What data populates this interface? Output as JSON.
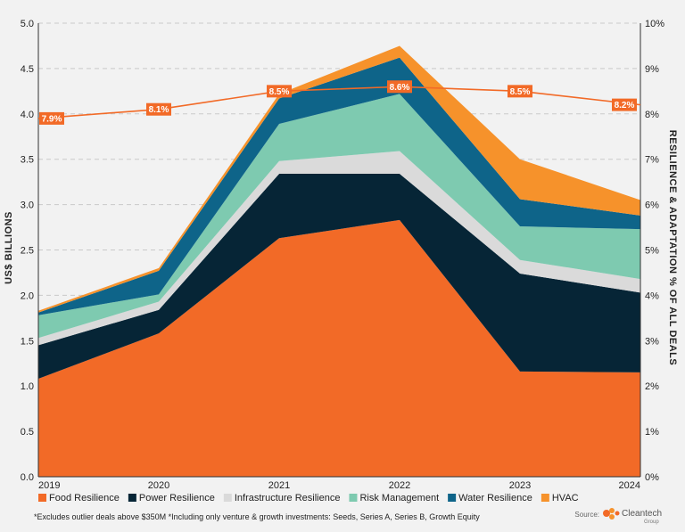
{
  "chart_data": {
    "type": "area",
    "stacked": true,
    "ylabel_left": "US$ BILLIONS",
    "ylabel_right": "RESILIENCE & ADAPTATION % OF ALL DEALS",
    "x": [
      "2019",
      "2020",
      "2021",
      "2022",
      "2023",
      "2024"
    ],
    "ylim_left": [
      0,
      5
    ],
    "yticks_left": [
      "0.0",
      "0.5",
      "1.0",
      "1.5",
      "2.0",
      "2.5",
      "3.0",
      "3.5",
      "4.0",
      "4.5",
      "5.0"
    ],
    "ylim_right": [
      0,
      10
    ],
    "yticks_right": [
      "0%",
      "1%",
      "2%",
      "3%",
      "4%",
      "5%",
      "6%",
      "7%",
      "8%",
      "9%",
      "10%"
    ],
    "grid": "horizontal dashed",
    "legend_placement": "bottom",
    "series": [
      {
        "name": "Food Resilience",
        "color": "#f26a27",
        "values": [
          1.08,
          1.58,
          2.63,
          2.83,
          1.16,
          1.15
        ]
      },
      {
        "name": "Power Resilience",
        "color": "#062536",
        "values": [
          0.37,
          0.26,
          0.71,
          0.51,
          1.08,
          0.88
        ]
      },
      {
        "name": "Infrastructure Resilience",
        "color": "#dadada",
        "values": [
          0.08,
          0.09,
          0.14,
          0.25,
          0.15,
          0.15
        ]
      },
      {
        "name": "Risk Management",
        "color": "#7ecab0",
        "values": [
          0.25,
          0.08,
          0.41,
          0.63,
          0.37,
          0.55
        ]
      },
      {
        "name": "Water Resilience",
        "color": "#0e6489",
        "values": [
          0.03,
          0.26,
          0.28,
          0.4,
          0.3,
          0.15
        ]
      },
      {
        "name": "HVAC",
        "color": "#f6922b",
        "values": [
          0.02,
          0.03,
          0.05,
          0.13,
          0.44,
          0.17
        ]
      }
    ],
    "line": {
      "name": "Resilience & Adaptation % of All Deals",
      "color": "#f26a27",
      "axis": "right",
      "values": [
        7.9,
        8.1,
        8.5,
        8.6,
        8.5,
        8.2
      ],
      "labels": [
        "7.9%",
        "8.1%",
        "8.5%",
        "8.6%",
        "8.5%",
        "8.2%"
      ]
    }
  },
  "footnote": "*Excludes outlier deals above $350M  *Including only venture & growth investments: Seeds, Series A, Series B, Growth Equity",
  "source": {
    "label": "Source:",
    "brand": "Cleantech",
    "brand_sub": "Group"
  }
}
